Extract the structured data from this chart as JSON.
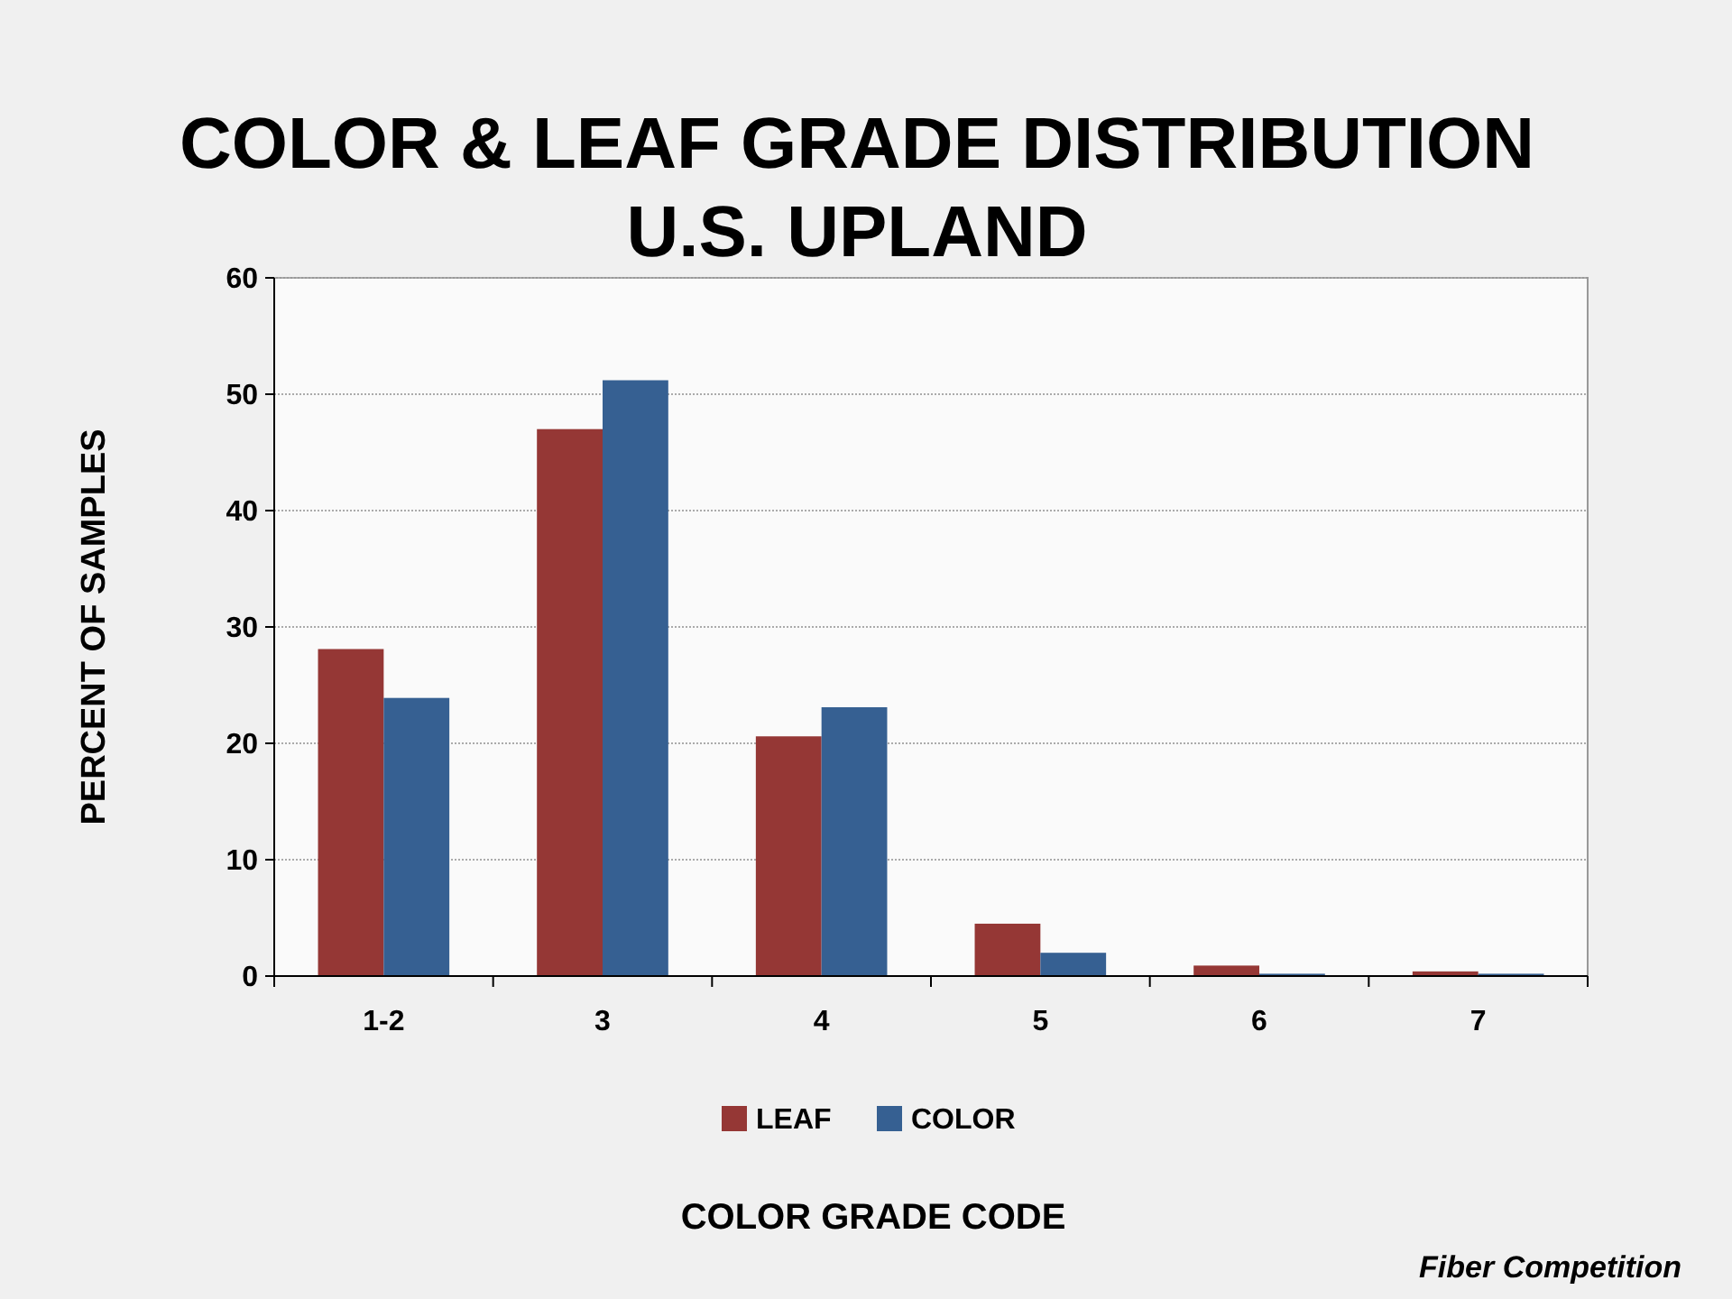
{
  "chart_data": {
    "type": "bar",
    "title": "COLOR & LEAF GRADE DISTRIBUTION",
    "subtitle": "U.S. UPLAND",
    "xlabel": "COLOR GRADE CODE",
    "ylabel": "PERCENT OF SAMPLES",
    "categories": [
      "1-2",
      "3",
      "4",
      "5",
      "6",
      "7"
    ],
    "series": [
      {
        "name": "LEAF",
        "color": "#953735",
        "values": [
          28.1,
          47,
          20.6,
          4.5,
          0.9,
          0.4
        ]
      },
      {
        "name": "COLOR",
        "color": "#366092",
        "values": [
          23.9,
          51.2,
          23.1,
          2.0,
          0.2,
          0.2
        ]
      }
    ],
    "ylim": [
      0,
      60
    ],
    "yticks": [
      0,
      10,
      20,
      30,
      40,
      50,
      60
    ],
    "grid": "y",
    "legend": "bottom",
    "annotations": [
      "Fiber Competition"
    ]
  }
}
